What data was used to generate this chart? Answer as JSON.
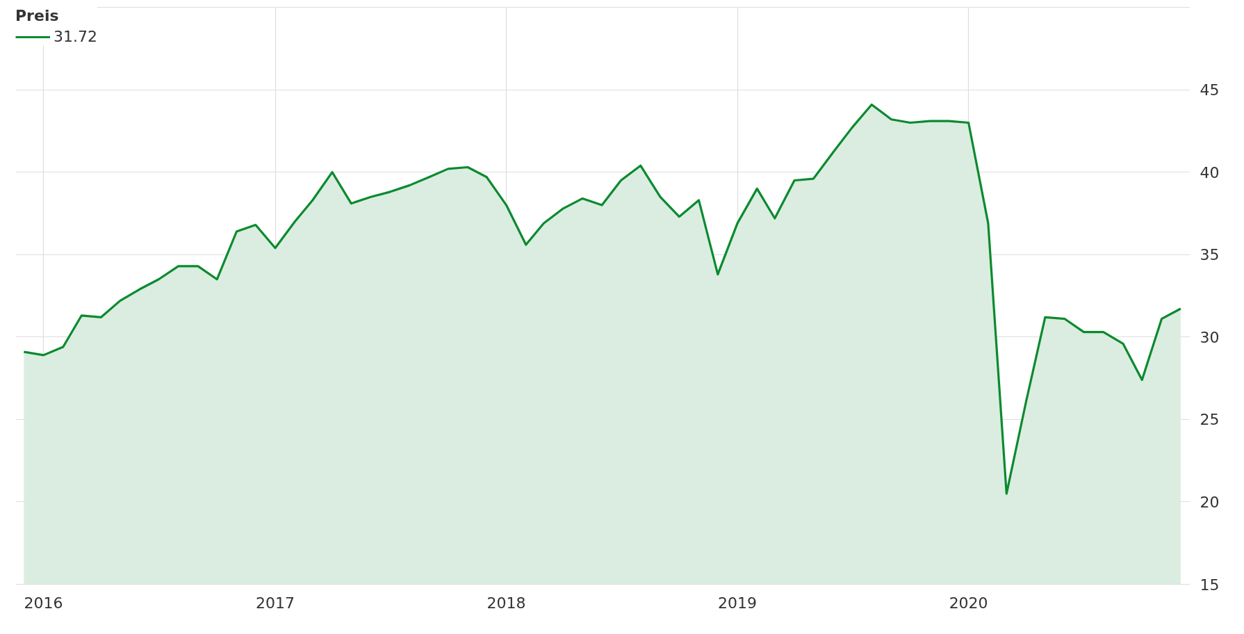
{
  "chart_data": {
    "type": "area",
    "legend_title": "Preis",
    "legend": "top left",
    "grid": true,
    "x": [
      "2015-12",
      "2016-01",
      "2016-02",
      "2016-03",
      "2016-04",
      "2016-05",
      "2016-06",
      "2016-07",
      "2016-08",
      "2016-09",
      "2016-10",
      "2016-11",
      "2016-12",
      "2017-01",
      "2017-02",
      "2017-03",
      "2017-04",
      "2017-05",
      "2017-06",
      "2017-07",
      "2017-08",
      "2017-09",
      "2017-10",
      "2017-11",
      "2017-12",
      "2018-01",
      "2018-02",
      "2018-03",
      "2018-04",
      "2018-05",
      "2018-06",
      "2018-07",
      "2018-08",
      "2018-09",
      "2018-10",
      "2018-11",
      "2018-12",
      "2019-01",
      "2019-02",
      "2019-03",
      "2019-04",
      "2019-05",
      "2019-06",
      "2019-07",
      "2019-08",
      "2019-09",
      "2019-10",
      "2019-11",
      "2019-12",
      "2020-01",
      "2020-02",
      "2020-03",
      "2020-04",
      "2020-05",
      "2020-06",
      "2020-07",
      "2020-08",
      "2020-09",
      "2020-10",
      "2020-11",
      "2020-12"
    ],
    "series": [
      {
        "name": "31.72",
        "color": "#0b8a2f",
        "values": [
          29.1,
          28.9,
          29.4,
          31.3,
          31.2,
          32.2,
          32.9,
          33.5,
          34.3,
          34.3,
          33.5,
          36.4,
          36.8,
          35.4,
          37.0,
          38.3,
          40.0,
          38.1,
          38.5,
          38.8,
          39.2,
          39.7,
          40.2,
          40.3,
          39.7,
          38.0,
          35.6,
          36.9,
          37.8,
          38.4,
          38.0,
          39.5,
          40.4,
          38.5,
          37.3,
          38.3,
          33.8,
          36.9,
          39.0,
          37.2,
          39.5,
          39.6,
          41.2,
          42.7,
          44.1,
          43.2,
          43.0,
          43.1,
          43.1,
          43.0,
          36.9,
          20.5,
          26.1,
          31.2,
          31.1,
          30.3,
          30.3,
          29.6,
          27.4,
          31.1,
          31.72
        ]
      }
    ],
    "xlim": [
      "2015-11-18",
      "2020-12-16"
    ],
    "xticks": [
      "2016",
      "2017",
      "2018",
      "2019",
      "2020"
    ],
    "ylim": [
      15,
      50
    ],
    "yticks": [
      15,
      20,
      25,
      30,
      35,
      40,
      45
    ]
  }
}
